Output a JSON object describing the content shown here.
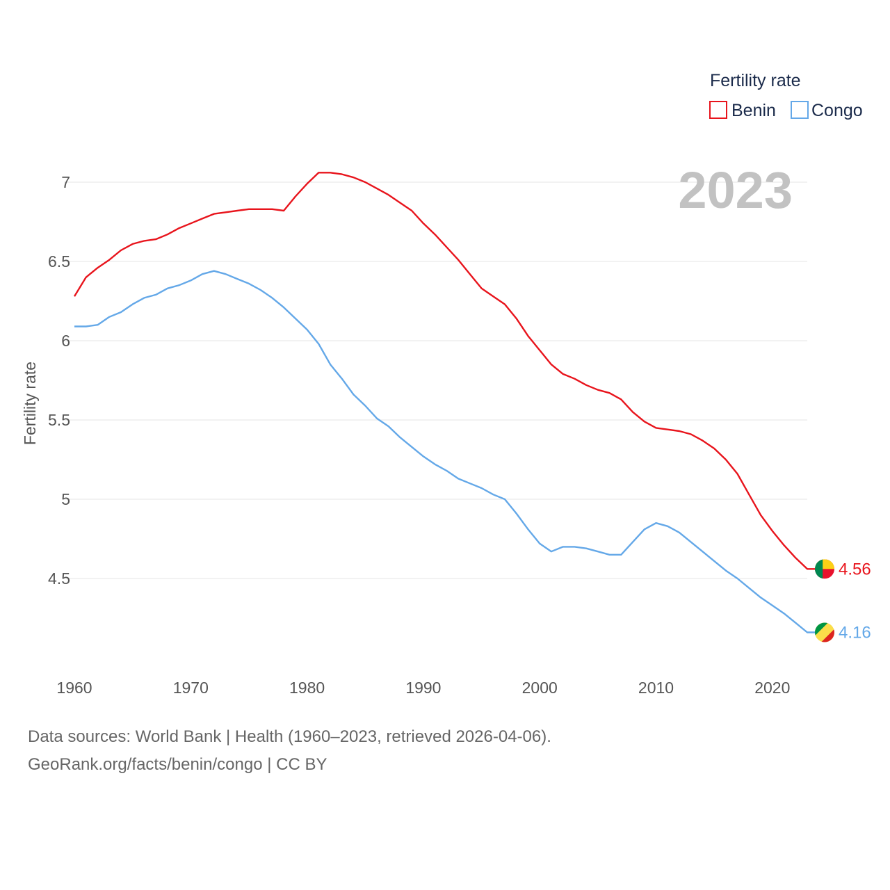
{
  "chart_data": {
    "type": "line",
    "title": "Fertility rate",
    "ylabel": "Fertility rate",
    "xlabel": "",
    "year_label": "2023",
    "xlim": [
      1960,
      2023
    ],
    "ylim": [
      4.04,
      7.2
    ],
    "xticks": [
      1960,
      1970,
      1980,
      1990,
      2000,
      2010,
      2020
    ],
    "yticks": [
      4.5,
      5,
      5.5,
      6,
      6.5,
      7
    ],
    "ytick_labels": [
      "4.5",
      "5",
      "5.5",
      "6",
      "6.5",
      "7"
    ],
    "grid": true,
    "legend_position": "top-right",
    "legend_title": "Fertility rate",
    "x": [
      1960,
      1961,
      1962,
      1963,
      1964,
      1965,
      1966,
      1967,
      1968,
      1969,
      1970,
      1971,
      1972,
      1973,
      1974,
      1975,
      1976,
      1977,
      1978,
      1979,
      1980,
      1981,
      1982,
      1983,
      1984,
      1985,
      1986,
      1987,
      1988,
      1989,
      1990,
      1991,
      1992,
      1993,
      1994,
      1995,
      1996,
      1997,
      1998,
      1999,
      2000,
      2001,
      2002,
      2003,
      2004,
      2005,
      2006,
      2007,
      2008,
      2009,
      2010,
      2011,
      2012,
      2013,
      2014,
      2015,
      2016,
      2017,
      2018,
      2019,
      2020,
      2021,
      2022,
      2023
    ],
    "series": [
      {
        "name": "Benin",
        "color": "#e8141c",
        "end_label": "4.56",
        "values": [
          6.28,
          6.4,
          6.46,
          6.51,
          6.57,
          6.61,
          6.63,
          6.64,
          6.67,
          6.71,
          6.74,
          6.77,
          6.8,
          6.81,
          6.82,
          6.83,
          6.83,
          6.83,
          6.82,
          6.91,
          6.99,
          7.06,
          7.06,
          7.05,
          7.03,
          7.0,
          6.96,
          6.92,
          6.87,
          6.82,
          6.74,
          6.67,
          6.59,
          6.51,
          6.42,
          6.33,
          6.28,
          6.23,
          6.14,
          6.03,
          5.94,
          5.85,
          5.79,
          5.76,
          5.72,
          5.69,
          5.67,
          5.63,
          5.55,
          5.49,
          5.45,
          5.44,
          5.43,
          5.41,
          5.37,
          5.32,
          5.25,
          5.16,
          5.03,
          4.9,
          4.8,
          4.71,
          4.63,
          4.56
        ]
      },
      {
        "name": "Congo",
        "color": "#64a8e8",
        "end_label": "4.16",
        "values": [
          6.09,
          6.09,
          6.1,
          6.15,
          6.18,
          6.23,
          6.27,
          6.29,
          6.33,
          6.35,
          6.38,
          6.42,
          6.44,
          6.42,
          6.39,
          6.36,
          6.32,
          6.27,
          6.21,
          6.14,
          6.07,
          5.98,
          5.85,
          5.76,
          5.66,
          5.59,
          5.51,
          5.46,
          5.39,
          5.33,
          5.27,
          5.22,
          5.18,
          5.13,
          5.1,
          5.07,
          5.03,
          5.0,
          4.91,
          4.81,
          4.72,
          4.67,
          4.7,
          4.7,
          4.69,
          4.67,
          4.65,
          4.65,
          4.73,
          4.81,
          4.85,
          4.83,
          4.79,
          4.73,
          4.67,
          4.61,
          4.55,
          4.5,
          4.44,
          4.38,
          4.33,
          4.28,
          4.22,
          4.16
        ]
      }
    ]
  },
  "footer": {
    "source_line": "Data sources: World Bank | Health (1960–2023, retrieved 2026-04-06).",
    "site_line": "GeoRank.org/facts/benin/congo | CC BY"
  },
  "flags": [
    {
      "name": "Benin",
      "colors": [
        "#008751",
        "#fcd116",
        "#e8112d"
      ]
    },
    {
      "name": "Congo",
      "colors": [
        "#009543",
        "#fbde4a",
        "#dc241f"
      ]
    }
  ]
}
